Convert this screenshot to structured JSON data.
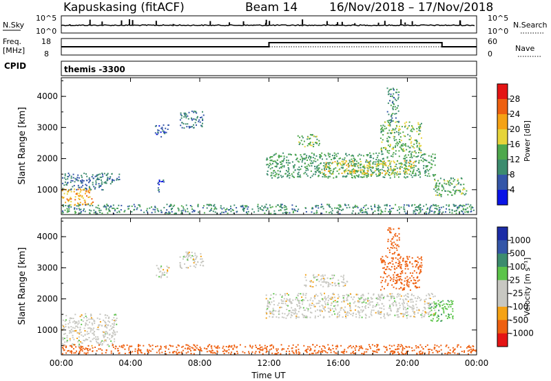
{
  "header": {
    "title": "Kapuskasing (fitACF)",
    "beam": "Beam 14",
    "dates": "16/Nov/2018 – 17/Nov/2018"
  },
  "noise_panel": {
    "left_label": "N.Sky",
    "right_label": "N.Search",
    "left_ticks": [
      "10^5",
      "10^0"
    ],
    "right_ticks": [
      "10^5",
      "10^0"
    ]
  },
  "freq_panel": {
    "left_label_1": "Freq.",
    "left_label_2": "[MHz]",
    "left_ticks": [
      "18",
      "8"
    ],
    "right_label": "Nave",
    "right_ticks": [
      "60",
      "0"
    ],
    "nave_profile": {
      "x_hours": [
        0,
        12,
        12,
        22,
        22,
        24
      ],
      "values": [
        30,
        30,
        45,
        45,
        30,
        30
      ]
    }
  },
  "cpid": {
    "label": "CPID",
    "value": "themis -3300"
  },
  "colors": {
    "power": [
      "#0a14e6",
      "#3456a8",
      "#3c8c6e",
      "#4ea84c",
      "#e6d43a",
      "#f5a214",
      "#ee6010",
      "#e41414"
    ],
    "velocity": [
      "#e41414",
      "#ee6010",
      "#f5a214",
      "#c8c8c2",
      "#c8c8c2",
      "#5cc44a",
      "#3c8c6e",
      "#3456a8",
      "#1c2ca6"
    ]
  },
  "chart_data": [
    {
      "type": "heatmap",
      "name": "power",
      "ylabel": "Slant Range [km]",
      "xlabel": "Time UT",
      "xlim_hours": [
        0,
        24
      ],
      "ylim_km": [
        200,
        4600
      ],
      "x_tick_labels": [
        "00:00",
        "04:00",
        "08:00",
        "12:00",
        "16:00",
        "20:00",
        "00:00"
      ],
      "y_tick_labels": [
        "1000",
        "2000",
        "3000",
        "4000"
      ],
      "colorbar": {
        "label": "Power [dB]",
        "ticks": [
          "4",
          "8",
          "12",
          "16",
          "20",
          "24",
          "28"
        ]
      },
      "regions": [
        {
          "t0": 0.0,
          "t1": 2.4,
          "r0": 1000,
          "r1": 1550,
          "value_db": 8
        },
        {
          "t0": 0.0,
          "t1": 1.8,
          "r0": 500,
          "r1": 1050,
          "value_db": 22
        },
        {
          "t0": 2.0,
          "t1": 3.4,
          "r0": 1200,
          "r1": 1550,
          "value_db": 8
        },
        {
          "t0": 0.0,
          "t1": 24.0,
          "r0": 250,
          "r1": 550,
          "value_db": 10
        },
        {
          "t0": 5.4,
          "t1": 6.2,
          "r0": 2700,
          "r1": 3100,
          "value_db": 6
        },
        {
          "t0": 6.8,
          "t1": 8.2,
          "r0": 3000,
          "r1": 3550,
          "value_db": 8
        },
        {
          "t0": 5.5,
          "t1": 5.9,
          "r0": 950,
          "r1": 1350,
          "value_db": 6
        },
        {
          "t0": 11.8,
          "t1": 21.6,
          "r0": 1400,
          "r1": 2200,
          "value_db": 12
        },
        {
          "t0": 15.0,
          "t1": 20.4,
          "r0": 1500,
          "r1": 1950,
          "value_db": 18
        },
        {
          "t0": 18.4,
          "t1": 20.8,
          "r0": 2200,
          "r1": 3200,
          "value_db": 14
        },
        {
          "t0": 18.8,
          "t1": 19.5,
          "r0": 3200,
          "r1": 4300,
          "value_db": 10
        },
        {
          "t0": 13.6,
          "t1": 14.9,
          "r0": 2400,
          "r1": 2800,
          "value_db": 14
        },
        {
          "t0": 21.5,
          "t1": 23.4,
          "r0": 800,
          "r1": 1400,
          "value_db": 14
        }
      ]
    },
    {
      "type": "heatmap",
      "name": "velocity",
      "ylabel": "Slant Range [km]",
      "xlabel": "Time UT",
      "xlim_hours": [
        0,
        24
      ],
      "ylim_km": [
        200,
        4600
      ],
      "x_tick_labels": [
        "00:00",
        "04:00",
        "08:00",
        "12:00",
        "16:00",
        "20:00",
        "00:00"
      ],
      "y_tick_labels": [
        "1000",
        "2000",
        "3000",
        "4000"
      ],
      "colorbar": {
        "label": "Velocity [m s⁻¹]",
        "ticks": [
          "1000",
          "500",
          "100",
          "25",
          "-25",
          "-100",
          "-500",
          "-1000"
        ]
      },
      "regions": [
        {
          "t0": 0.0,
          "t1": 3.2,
          "r0": 500,
          "r1": 1550,
          "value_ms": 0
        },
        {
          "t0": 0.0,
          "t1": 24.0,
          "r0": 250,
          "r1": 550,
          "value_ms": -150
        },
        {
          "t0": 5.4,
          "t1": 6.2,
          "r0": 2700,
          "r1": 3100,
          "value_ms": 0
        },
        {
          "t0": 6.8,
          "t1": 8.2,
          "r0": 3000,
          "r1": 3550,
          "value_ms": 0
        },
        {
          "t0": 11.8,
          "t1": 21.6,
          "r0": 1400,
          "r1": 2200,
          "value_ms": 0
        },
        {
          "t0": 18.4,
          "t1": 20.8,
          "r0": 2300,
          "r1": 3400,
          "value_ms": -200
        },
        {
          "t0": 18.8,
          "t1": 19.5,
          "r0": 3400,
          "r1": 4300,
          "value_ms": -300
        },
        {
          "t0": 21.2,
          "t1": 22.6,
          "r0": 1300,
          "r1": 2000,
          "value_ms": 80
        },
        {
          "t0": 14.0,
          "t1": 16.5,
          "r0": 2400,
          "r1": 2800,
          "value_ms": 0
        }
      ]
    }
  ]
}
